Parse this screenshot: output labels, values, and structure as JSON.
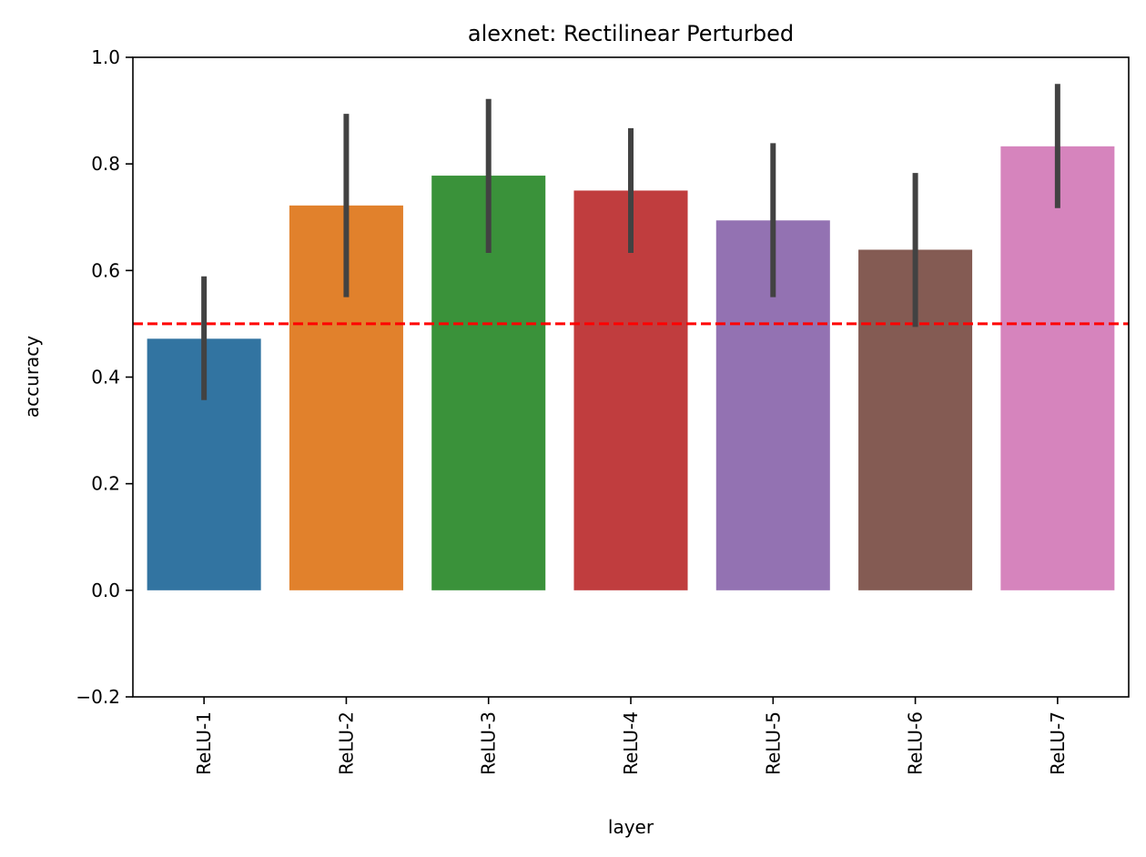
{
  "chart_data": {
    "type": "bar",
    "title": "alexnet: Rectilinear Perturbed",
    "xlabel": "layer",
    "ylabel": "accuracy",
    "categories": [
      "ReLU-1",
      "ReLU-2",
      "ReLU-3",
      "ReLU-4",
      "ReLU-5",
      "ReLU-6",
      "ReLU-7"
    ],
    "values": [
      0.472,
      0.722,
      0.778,
      0.75,
      0.694,
      0.639,
      0.833
    ],
    "error_low": [
      0.357,
      0.55,
      0.633,
      0.633,
      0.55,
      0.494,
      0.717
    ],
    "error_high": [
      0.589,
      0.894,
      0.922,
      0.867,
      0.839,
      0.783,
      0.95
    ],
    "colors": [
      "#3274a1",
      "#e1812c",
      "#3a923a",
      "#c03d3e",
      "#9372b2",
      "#845b53",
      "#d684bd"
    ],
    "error_color": "#424242",
    "ylim": [
      -0.2,
      1.0
    ],
    "yticks": [
      -0.2,
      0.0,
      0.2,
      0.4,
      0.6,
      0.8,
      1.0
    ],
    "ytick_labels": [
      "−0.2",
      "0.0",
      "0.2",
      "0.4",
      "0.6",
      "0.8",
      "1.0"
    ],
    "reference_line": {
      "y": 0.5,
      "color": "#ff0000",
      "style": "dashed"
    },
    "grid": false,
    "legend": "none"
  }
}
